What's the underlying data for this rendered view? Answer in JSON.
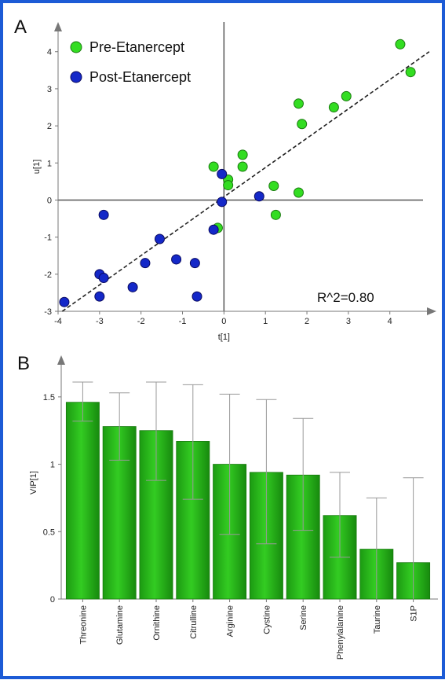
{
  "chart_data": [
    {
      "type": "scatter",
      "panel_label": "A",
      "xlabel": "t[1]",
      "ylabel": "u[1]",
      "xlim": [
        -4,
        4.8
      ],
      "ylim": [
        -3,
        4.8
      ],
      "xticks": [
        -4,
        -3,
        -2,
        -1,
        0,
        1,
        2,
        3,
        4
      ],
      "yticks": [
        -3,
        -2,
        -1,
        0,
        1,
        2,
        3,
        4
      ],
      "legend_position": "top-left",
      "annotation": "R^2=0.80",
      "regression_line": {
        "x": [
          -3.9,
          4.95
        ],
        "y": [
          -3.0,
          4.0
        ],
        "style": "dashed"
      },
      "series": [
        {
          "name": "Pre-Etanercept",
          "color": "#33dd22",
          "points": [
            [
              4.25,
              4.2
            ],
            [
              4.5,
              3.45
            ],
            [
              1.8,
              2.6
            ],
            [
              2.95,
              2.8
            ],
            [
              2.65,
              2.5
            ],
            [
              1.88,
              2.05
            ],
            [
              0.45,
              1.22
            ],
            [
              0.45,
              0.9
            ],
            [
              -0.25,
              0.9
            ],
            [
              0.1,
              0.55
            ],
            [
              0.1,
              0.4
            ],
            [
              1.2,
              0.38
            ],
            [
              1.8,
              0.2
            ],
            [
              1.25,
              -0.4
            ],
            [
              -0.15,
              -0.75
            ]
          ]
        },
        {
          "name": "Post-Etanercept",
          "color": "#1428c8",
          "points": [
            [
              -0.05,
              0.7
            ],
            [
              0.85,
              0.1
            ],
            [
              -0.05,
              -0.05
            ],
            [
              -2.9,
              -0.4
            ],
            [
              -0.25,
              -0.8
            ],
            [
              -1.55,
              -1.05
            ],
            [
              -1.9,
              -1.7
            ],
            [
              -1.15,
              -1.6
            ],
            [
              -0.7,
              -1.7
            ],
            [
              -3.0,
              -2.0
            ],
            [
              -2.9,
              -2.1
            ],
            [
              -2.2,
              -2.35
            ],
            [
              -3.0,
              -2.6
            ],
            [
              -0.65,
              -2.6
            ],
            [
              -3.85,
              -2.75
            ]
          ]
        }
      ]
    },
    {
      "type": "bar",
      "panel_label": "B",
      "ylabel": "VIP[1]",
      "ylim": [
        0,
        1.75
      ],
      "yticks": [
        0,
        0.5,
        1,
        1.5
      ],
      "bar_color": "#33cc22",
      "categories": [
        "Threonine",
        "Glutamine",
        "Ornithine",
        "Citrulline",
        "Arginine",
        "Cystine",
        "Serine",
        "Phenylalanine",
        "Taurine",
        "S1P"
      ],
      "values": [
        1.46,
        1.28,
        1.25,
        1.17,
        1.0,
        0.94,
        0.92,
        0.62,
        0.37,
        0.27
      ],
      "error_low": [
        1.32,
        1.03,
        0.88,
        0.74,
        0.48,
        0.41,
        0.51,
        0.31,
        0.0,
        0.0
      ],
      "error_high": [
        1.61,
        1.53,
        1.61,
        1.59,
        1.52,
        1.48,
        1.34,
        0.94,
        0.75,
        0.9
      ]
    }
  ]
}
